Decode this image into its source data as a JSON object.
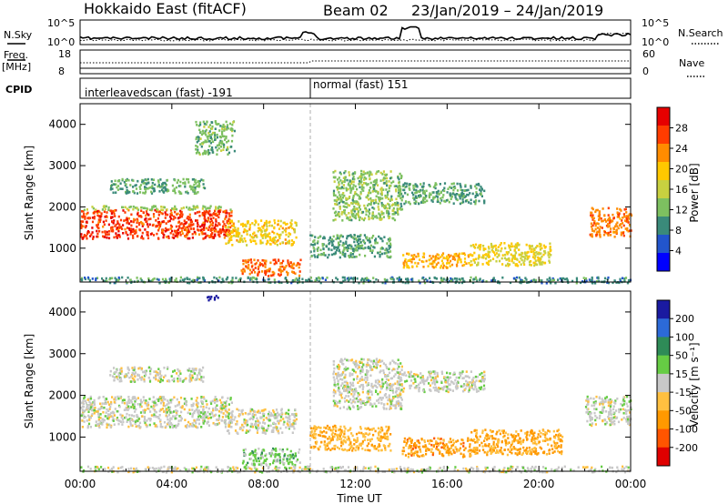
{
  "header": {
    "radar": "Hokkaido East (fitACF)",
    "beam": "Beam 02",
    "dates": "23/Jan/2019 – 24/Jan/2019"
  },
  "summary": {
    "nsky_label": "N.Sky",
    "nsearch_label": "N.Search",
    "nsky_ticks": [
      "10^5",
      "10^0"
    ],
    "nsearch_ticks": [
      "10^5",
      "10^0"
    ],
    "freq_label_1": "Freq.",
    "freq_label_2": "[MHz]",
    "freq_ticks": [
      "18",
      "8"
    ],
    "nave_label": "Nave",
    "nave_ticks": [
      "60",
      "0"
    ],
    "cpid_label": "CPID",
    "cpid_segments": [
      {
        "text": "interleavedscan (fast) -191",
        "start_hour": 0,
        "end_hour": 10
      },
      {
        "text": "normal (fast) 151",
        "start_hour": 10,
        "end_hour": 24
      }
    ]
  },
  "x_axis": {
    "label": "Time UT",
    "tick_labels": [
      "00:00",
      "04:00",
      "08:00",
      "12:00",
      "16:00",
      "20:00",
      "00:00"
    ],
    "tick_hours": [
      0,
      4,
      8,
      12,
      16,
      20,
      24
    ]
  },
  "panels": {
    "power": {
      "ylabel": "Slant Range [km]",
      "yticks": [
        "1000",
        "2000",
        "3000",
        "4000"
      ],
      "cbar_label": "Power [dB]",
      "cbar_ticks": [
        "4",
        "8",
        "12",
        "16",
        "20",
        "24",
        "28"
      ]
    },
    "velocity": {
      "ylabel": "Slant Range [km]",
      "yticks": [
        "1000",
        "2000",
        "3000",
        "4000"
      ],
      "cbar_label": "Velocity [m s⁻¹]",
      "cbar_ticks": [
        "200",
        "100",
        "50",
        "15",
        "-15",
        "-50",
        "-100",
        "-200"
      ]
    }
  },
  "colors": {
    "power_scale": [
      "#0000ff",
      "#2255cc",
      "#3a8a7a",
      "#7dc060",
      "#c8d040",
      "#ffc800",
      "#ff8c00",
      "#ff3c00",
      "#e60000"
    ],
    "velocity_scale": [
      "#1a1aa0",
      "#2c6ad8",
      "#2e8b57",
      "#66cc44",
      "#c8c8c8",
      "#ffc040",
      "#ff9900",
      "#ff5500",
      "#e00000"
    ]
  },
  "chart_data": [
    {
      "type": "heatmap",
      "name": "power",
      "x_unit": "hours UT",
      "y_unit": "slant range km",
      "xlim": [
        0,
        24
      ],
      "ylim": [
        180,
        4500
      ],
      "zlim": [
        0,
        32
      ],
      "regions": [
        {
          "t0": 0.0,
          "t1": 6.6,
          "r0": 1250,
          "r1": 1950,
          "z": 27
        },
        {
          "t0": 0.0,
          "t1": 6.6,
          "r0": 1950,
          "r1": 2050,
          "z": 14
        },
        {
          "t0": 6.3,
          "t1": 9.4,
          "r0": 1100,
          "r1": 1700,
          "z": 19
        },
        {
          "t0": 7.0,
          "t1": 9.6,
          "r0": 350,
          "r1": 750,
          "z": 25
        },
        {
          "t0": 1.2,
          "t1": 5.4,
          "r0": 2350,
          "r1": 2700,
          "z": 11
        },
        {
          "t0": 5.0,
          "t1": 6.7,
          "r0": 3300,
          "r1": 4100,
          "z": 12
        },
        {
          "t0": 10.0,
          "t1": 13.5,
          "r0": 800,
          "r1": 1350,
          "z": 10
        },
        {
          "t0": 11.0,
          "t1": 14.0,
          "r0": 1700,
          "r1": 2900,
          "z": 13
        },
        {
          "t0": 13.8,
          "t1": 17.6,
          "r0": 2100,
          "r1": 2600,
          "z": 11
        },
        {
          "t0": 14.0,
          "t1": 17.0,
          "r0": 550,
          "r1": 900,
          "z": 21
        },
        {
          "t0": 17.0,
          "t1": 20.5,
          "r0": 600,
          "r1": 1150,
          "z": 18
        },
        {
          "t0": 22.2,
          "t1": 24.0,
          "r0": 1300,
          "r1": 2000,
          "z": 24
        },
        {
          "t0": 0.0,
          "t1": 24.0,
          "r0": 180,
          "r1": 320,
          "z": 9
        }
      ]
    },
    {
      "type": "heatmap",
      "name": "velocity",
      "x_unit": "hours UT",
      "y_unit": "slant range km",
      "xlim": [
        0,
        24
      ],
      "ylim": [
        180,
        4500
      ],
      "zlim": [
        -200,
        200
      ],
      "regions": [
        {
          "t0": 0.0,
          "t1": 6.6,
          "r0": 1250,
          "r1": 2000,
          "z": 0
        },
        {
          "t0": 6.3,
          "t1": 9.4,
          "r0": 1100,
          "r1": 1700,
          "z": 0
        },
        {
          "t0": 7.0,
          "t1": 9.6,
          "r0": 350,
          "r1": 750,
          "z": 40
        },
        {
          "t0": 1.2,
          "t1": 5.4,
          "r0": 2350,
          "r1": 2700,
          "z": 0
        },
        {
          "t0": 10.0,
          "t1": 13.5,
          "r0": 700,
          "r1": 1300,
          "z": -60
        },
        {
          "t0": 11.0,
          "t1": 14.0,
          "r0": 1700,
          "r1": 2900,
          "z": 0
        },
        {
          "t0": 13.8,
          "t1": 17.6,
          "r0": 2100,
          "r1": 2600,
          "z": 0
        },
        {
          "t0": 14.0,
          "t1": 17.0,
          "r0": 550,
          "r1": 1000,
          "z": -80
        },
        {
          "t0": 17.0,
          "t1": 21.0,
          "r0": 600,
          "r1": 1200,
          "z": -70
        },
        {
          "t0": 22.0,
          "t1": 24.0,
          "r0": 1300,
          "r1": 2000,
          "z": 0
        },
        {
          "t0": 5.5,
          "t1": 6.0,
          "r0": 4300,
          "r1": 4450,
          "z": 220
        },
        {
          "t0": 0.0,
          "t1": 24.0,
          "r0": 180,
          "r1": 320,
          "z": 0
        }
      ]
    }
  ]
}
